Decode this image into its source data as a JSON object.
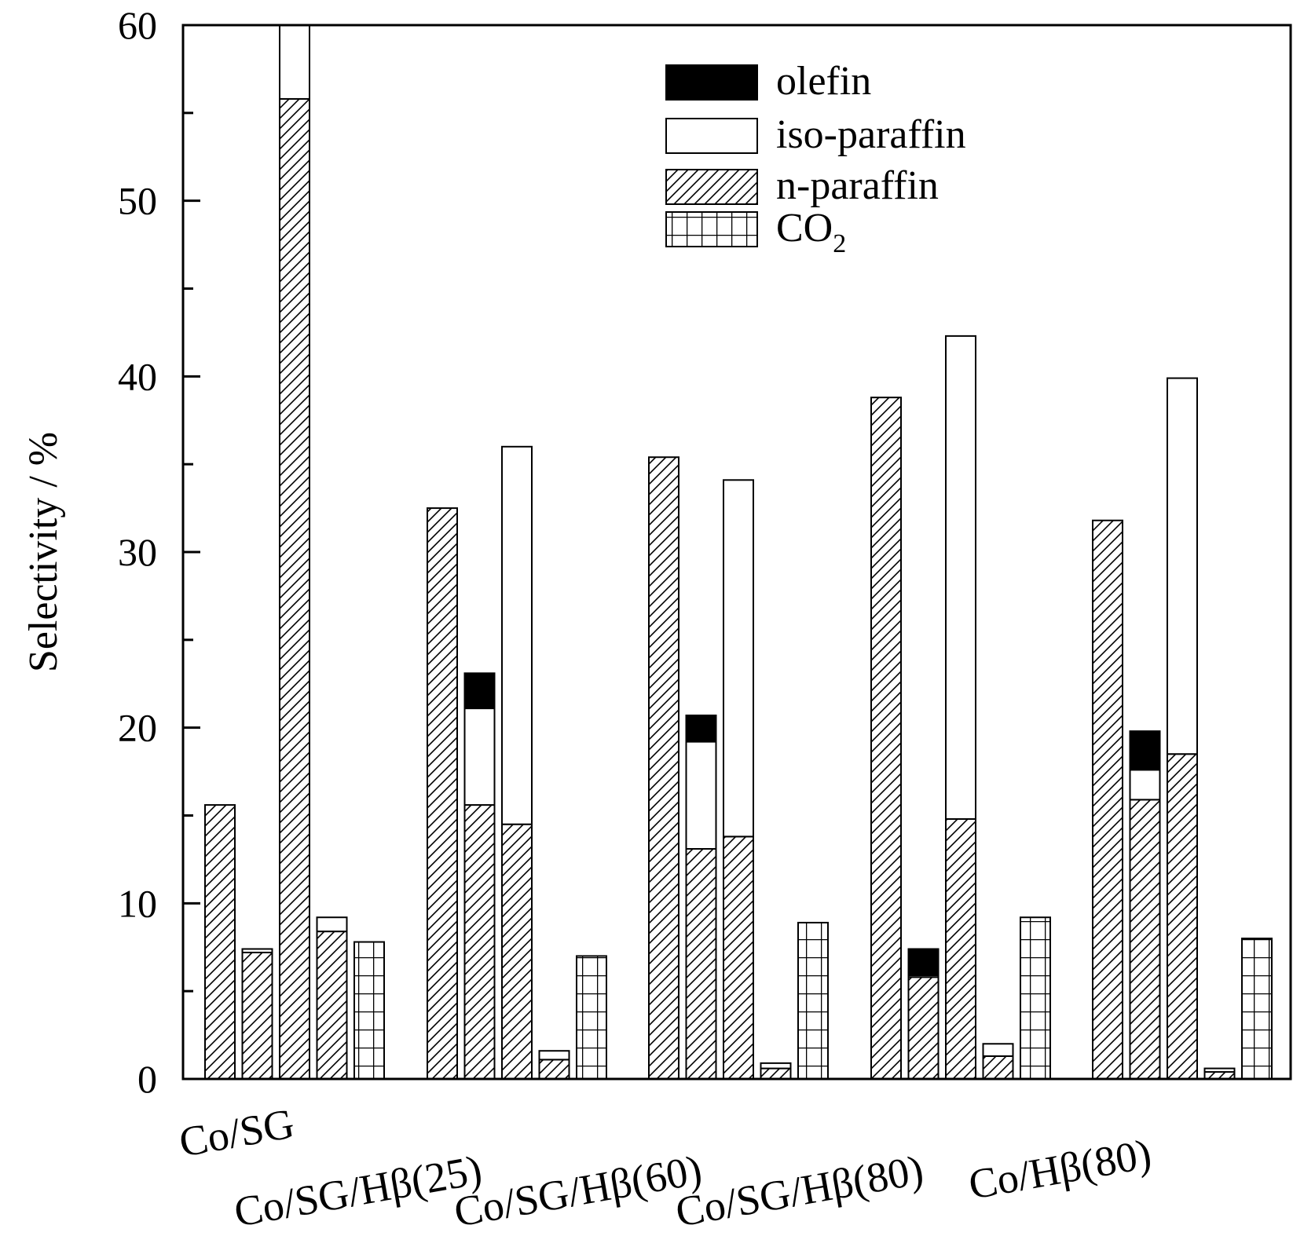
{
  "chart_data": {
    "type": "bar",
    "stacked": true,
    "ylabel": "Selectivity / %",
    "ylim": [
      0,
      60
    ],
    "yticks": [
      "0",
      "10",
      "20",
      "30",
      "40",
      "50",
      "60"
    ],
    "grid": false,
    "legend_position": "top-right",
    "categories": [
      "Co/SG",
      "Co/SG/Hβ(25)",
      "Co/SG/Hβ(60)",
      "Co/SG/Hβ(80)",
      "Co/Hβ(80)"
    ],
    "series": [
      {
        "key": "olefin",
        "name": "olefin",
        "fill": "black"
      },
      {
        "key": "iso",
        "name": "iso-paraffin",
        "fill": "white"
      },
      {
        "key": "n",
        "name": "n-paraffin",
        "fill": "hatch"
      },
      {
        "key": "co2",
        "name": "CO",
        "name_sub": "2",
        "fill": "grid"
      }
    ],
    "groups": [
      {
        "category": "Co/SG",
        "bars": [
          {
            "n": 15.6,
            "iso": 0,
            "olefin": 0
          },
          {
            "n": 7.2,
            "iso": 0.2,
            "olefin": 0
          },
          {
            "n": 55.8,
            "iso": 4.2,
            "olefin": 0
          },
          {
            "n": 8.4,
            "iso": 0.8,
            "olefin": 0
          },
          {
            "co2": 7.8
          }
        ]
      },
      {
        "category": "Co/SG/Hβ(25)",
        "bars": [
          {
            "n": 32.5,
            "iso": 0,
            "olefin": 0
          },
          {
            "n": 15.6,
            "iso": 5.5,
            "olefin": 2.0
          },
          {
            "n": 14.5,
            "iso": 21.5,
            "olefin": 0
          },
          {
            "n": 1.1,
            "iso": 0.5,
            "olefin": 0
          },
          {
            "co2": 7.0
          }
        ]
      },
      {
        "category": "Co/SG/Hβ(60)",
        "bars": [
          {
            "n": 35.4,
            "iso": 0,
            "olefin": 0
          },
          {
            "n": 13.1,
            "iso": 6.1,
            "olefin": 1.5
          },
          {
            "n": 13.8,
            "iso": 20.3,
            "olefin": 0
          },
          {
            "n": 0.6,
            "iso": 0.3,
            "olefin": 0
          },
          {
            "co2": 8.9
          }
        ]
      },
      {
        "category": "Co/SG/Hβ(80)",
        "bars": [
          {
            "n": 38.8,
            "iso": 0,
            "olefin": 0
          },
          {
            "n": 5.8,
            "iso": 0.1,
            "olefin": 1.5
          },
          {
            "n": 14.8,
            "iso": 27.5,
            "olefin": 0
          },
          {
            "n": 1.3,
            "iso": 0.7,
            "olefin": 0
          },
          {
            "co2": 9.2
          }
        ]
      },
      {
        "category": "Co/Hβ(80)",
        "bars": [
          {
            "n": 31.8,
            "iso": 0,
            "olefin": 0
          },
          {
            "n": 15.9,
            "iso": 1.7,
            "olefin": 2.2
          },
          {
            "n": 18.5,
            "iso": 21.4,
            "olefin": 0
          },
          {
            "n": 0.4,
            "iso": 0.2,
            "olefin": 0
          },
          {
            "co2": 8.0
          }
        ]
      }
    ]
  }
}
